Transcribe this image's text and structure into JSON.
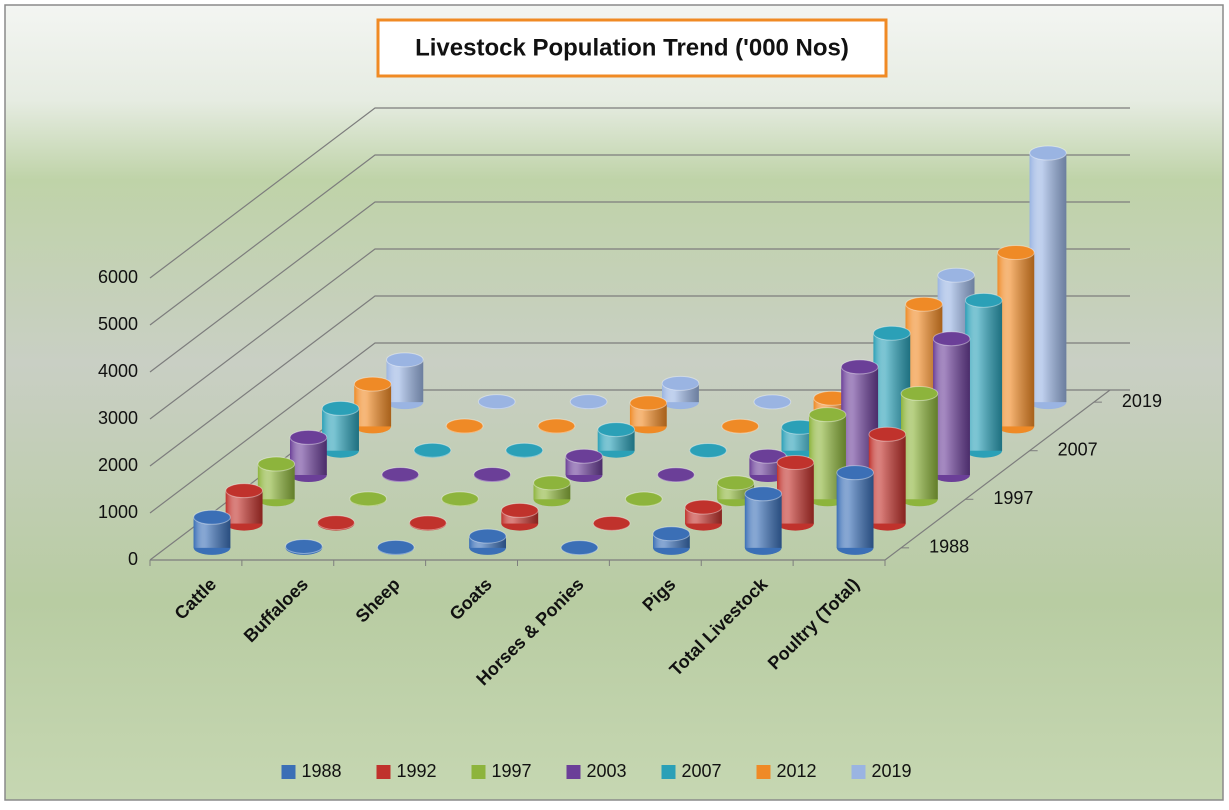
{
  "chart_data": {
    "type": "bar3d",
    "title": "Livestock Population Trend ('000 Nos)",
    "categories": [
      "Cattle",
      "Buffaloes",
      "Sheep",
      "Goats",
      "Horses & Ponies",
      "Pigs",
      "Total Livestock",
      "Poultry (Total)"
    ],
    "series": [
      {
        "name": "1988",
        "color": "#3b6fb6",
        "values": [
          650,
          30,
          10,
          250,
          5,
          300,
          1150,
          1600
        ]
      },
      {
        "name": "1992",
        "color": "#c0322c",
        "values": [
          700,
          20,
          15,
          280,
          5,
          350,
          1300,
          1900
        ]
      },
      {
        "name": "1997",
        "color": "#8db43c",
        "values": [
          750,
          10,
          10,
          350,
          5,
          350,
          1800,
          2250
        ]
      },
      {
        "name": "2003",
        "color": "#6b3f98",
        "values": [
          800,
          10,
          10,
          400,
          5,
          400,
          2300,
          2900
        ]
      },
      {
        "name": "2007",
        "color": "#2ba0b7",
        "values": [
          900,
          10,
          10,
          450,
          5,
          500,
          2500,
          3200
        ]
      },
      {
        "name": "2012",
        "color": "#ef8a26",
        "values": [
          900,
          10,
          10,
          500,
          5,
          600,
          2600,
          3700
        ]
      },
      {
        "name": "2019",
        "color": "#9ab4e2",
        "values": [
          900,
          10,
          10,
          400,
          5,
          700,
          2700,
          5300
        ]
      }
    ],
    "ylim": [
      0,
      6000
    ],
    "yticks": [
      0,
      1000,
      2000,
      3000,
      4000,
      5000,
      6000
    ],
    "grid": true,
    "legend": "bottom"
  }
}
